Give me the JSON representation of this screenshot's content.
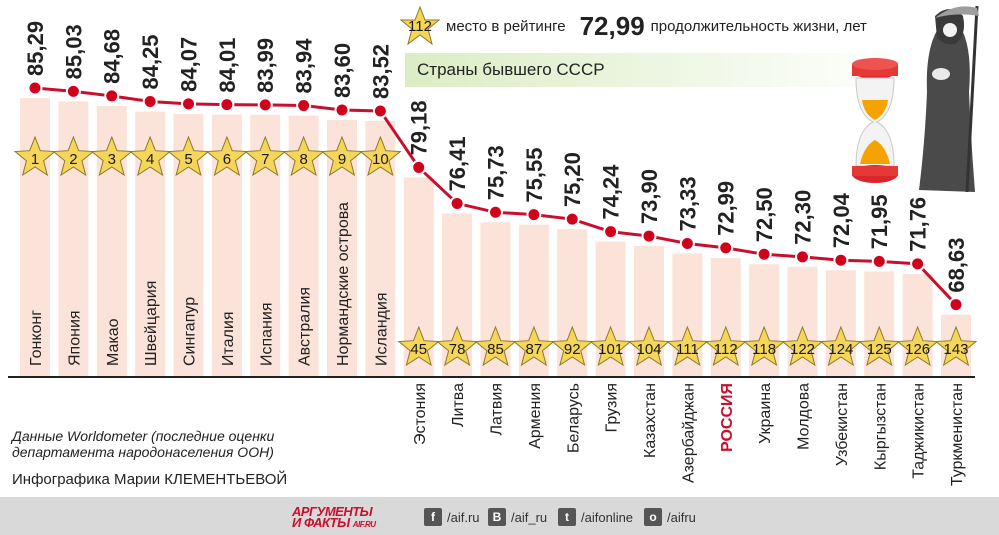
{
  "legend": {
    "rank_example": "112",
    "rank_label": "место в рейтинге",
    "life_example": "72,99",
    "life_label": "продолжительность жизни, лет"
  },
  "ussr_label": "Страны бывшего СССР",
  "source_note": "Данные Worldometer (последние оценки департамента народонаселения ООН)",
  "author": "Инфографика Марии КЛЕМЕНТЬЕВОЙ",
  "brand": {
    "line1": "АРГУМЕНТЫ",
    "line2": "И ФАКТЫ",
    "domain": "AIF.RU"
  },
  "social": [
    {
      "icon": "f",
      "label": "/aif.ru",
      "name": "facebook-icon"
    },
    {
      "icon": "B",
      "label": "/aif_ru",
      "name": "vk-icon"
    },
    {
      "icon": "t",
      "label": "/aifonline",
      "name": "twitter-icon"
    },
    {
      "icon": "o",
      "label": "/aifru",
      "name": "odnoklassniki-icon"
    }
  ],
  "colors": {
    "line": "#c8102e",
    "dot": "#d0021b",
    "star": "#f5d55a",
    "bar": "#fbe3d9",
    "highlight": "#c8102e"
  },
  "chart_data": {
    "type": "line",
    "title": "",
    "xlabel": "",
    "ylabel": "",
    "ylim": [
      68,
      86
    ],
    "categories": [
      "Гонконг",
      "Япония",
      "Макао",
      "Швейцария",
      "Сингапур",
      "Италия",
      "Испания",
      "Австралия",
      "Нормандские острова",
      "Исландия",
      "Эстония",
      "Литва",
      "Латвия",
      "Армения",
      "Беларусь",
      "Грузия",
      "Казахстан",
      "Азербайджан",
      "РОССИЯ",
      "Украина",
      "Молдова",
      "Узбекистан",
      "Кыргызстан",
      "Таджикистан",
      "Туркменистан"
    ],
    "values": [
      85.29,
      85.03,
      84.68,
      84.25,
      84.07,
      84.01,
      83.99,
      83.94,
      83.6,
      83.52,
      79.18,
      76.41,
      75.73,
      75.55,
      75.2,
      74.24,
      73.9,
      73.33,
      72.99,
      72.5,
      72.3,
      72.04,
      71.95,
      71.76,
      68.63
    ],
    "value_labels": [
      "85,29",
      "85,03",
      "84,68",
      "84,25",
      "84,07",
      "84,01",
      "83,99",
      "83,94",
      "83,60",
      "83,52",
      "79,18",
      "76,41",
      "75,73",
      "75,55",
      "75,20",
      "74,24",
      "73,90",
      "73,33",
      "72,99",
      "72,50",
      "72,30",
      "72,04",
      "71,95",
      "71,76",
      "68,63"
    ],
    "ranks": [
      "1",
      "2",
      "3",
      "4",
      "5",
      "6",
      "7",
      "8",
      "9",
      "10",
      "45",
      "78",
      "85",
      "87",
      "92",
      "101",
      "104",
      "111",
      "112",
      "118",
      "122",
      "124",
      "125",
      "126",
      "143"
    ],
    "highlight_category": "РОССИЯ"
  }
}
